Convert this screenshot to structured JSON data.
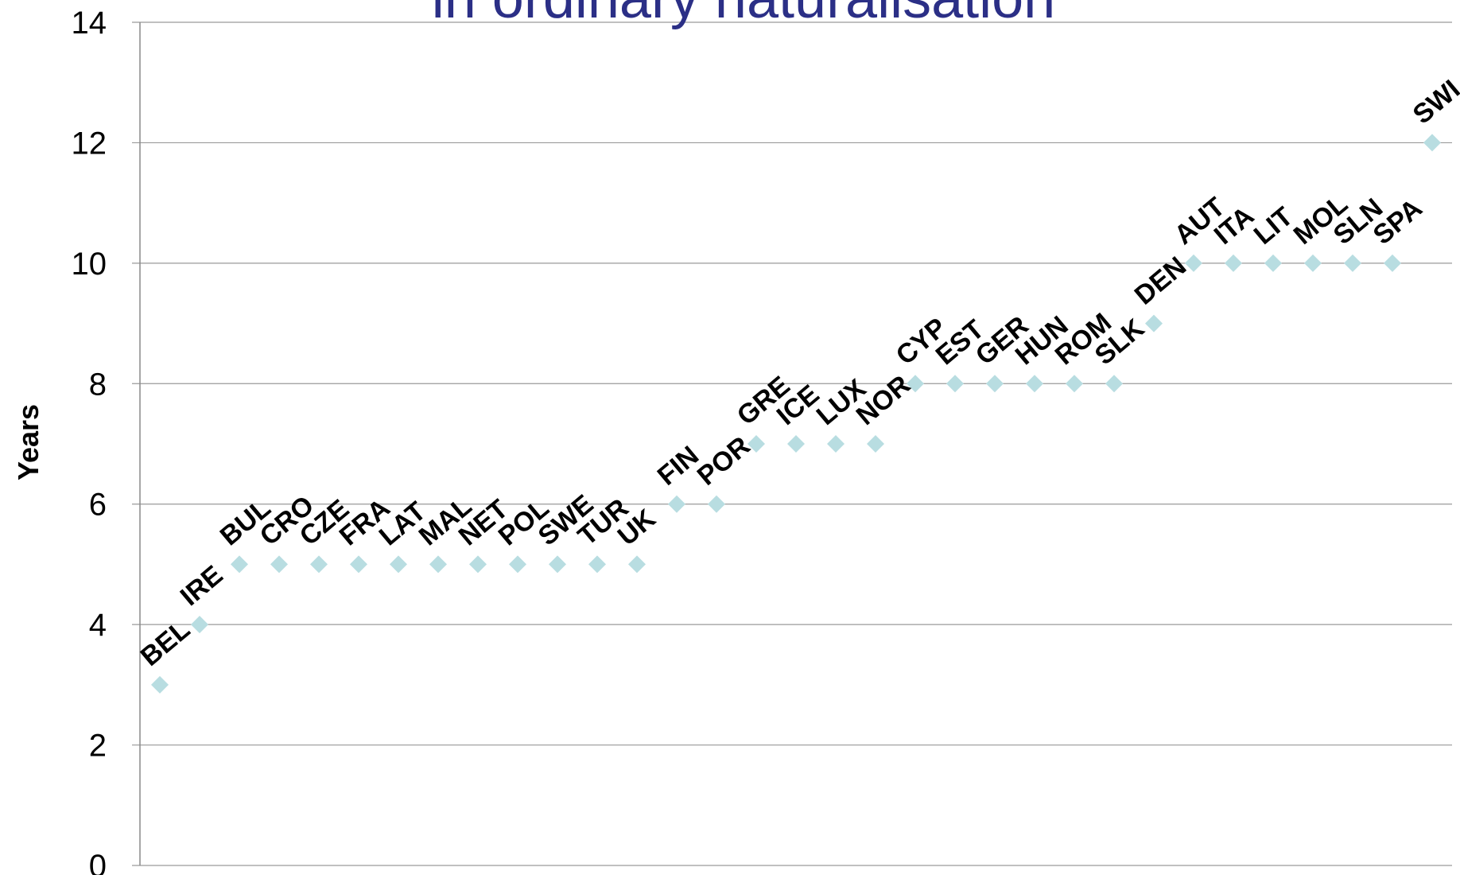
{
  "chart_data": {
    "type": "scatter",
    "title": "in ordinary naturalisation",
    "xlabel": "",
    "ylabel": "Years",
    "ylim": [
      0,
      14
    ],
    "y_ticks": [
      0,
      2,
      4,
      6,
      8,
      10,
      12,
      14
    ],
    "grid": true,
    "marker": "diamond",
    "marker_color": "#b8dde1",
    "title_color": "#2b2f86",
    "points": [
      {
        "label": "BEL",
        "y": 3
      },
      {
        "label": "IRE",
        "y": 4
      },
      {
        "label": "BUL",
        "y": 5
      },
      {
        "label": "CRO",
        "y": 5
      },
      {
        "label": "CZE",
        "y": 5
      },
      {
        "label": "FRA",
        "y": 5
      },
      {
        "label": "LAT",
        "y": 5
      },
      {
        "label": "MAL",
        "y": 5
      },
      {
        "label": "NET",
        "y": 5
      },
      {
        "label": "POL",
        "y": 5
      },
      {
        "label": "SWE",
        "y": 5
      },
      {
        "label": "TUR",
        "y": 5
      },
      {
        "label": "UK",
        "y": 5
      },
      {
        "label": "FIN",
        "y": 6
      },
      {
        "label": "POR",
        "y": 6
      },
      {
        "label": "GRE",
        "y": 7
      },
      {
        "label": "ICE",
        "y": 7
      },
      {
        "label": "LUX",
        "y": 7
      },
      {
        "label": "NOR",
        "y": 7
      },
      {
        "label": "CYP",
        "y": 8
      },
      {
        "label": "EST",
        "y": 8
      },
      {
        "label": "GER",
        "y": 8
      },
      {
        "label": "HUN",
        "y": 8
      },
      {
        "label": "ROM",
        "y": 8
      },
      {
        "label": "SLK",
        "y": 8
      },
      {
        "label": "DEN",
        "y": 9
      },
      {
        "label": "AUT",
        "y": 10
      },
      {
        "label": "ITA",
        "y": 10
      },
      {
        "label": "LIT",
        "y": 10
      },
      {
        "label": "MOL",
        "y": 10
      },
      {
        "label": "SLN",
        "y": 10
      },
      {
        "label": "SPA",
        "y": 10
      },
      {
        "label": "SWI",
        "y": 12
      }
    ]
  }
}
